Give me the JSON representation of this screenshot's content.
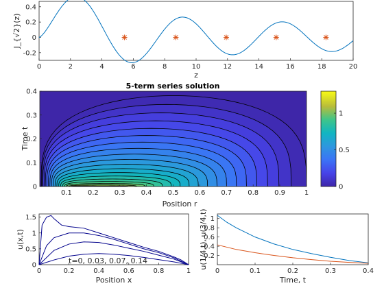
{
  "chart_data": [
    {
      "type": "line",
      "xlabel": "z",
      "ylabel": "J_{√2}(z)",
      "xlim": [
        0,
        20
      ],
      "ylim": [
        -0.3,
        0.47
      ],
      "xticks": [
        0,
        2,
        4,
        6,
        8,
        10,
        12,
        14,
        16,
        18,
        20
      ],
      "yticks": [
        -0.2,
        0,
        0.2,
        0.4
      ],
      "ytick_labels": [
        "-0.2",
        "0",
        "0.2",
        "0.4"
      ],
      "grid": false,
      "series": [
        {
          "kind": "curve",
          "function": "bessel_j",
          "order": 1.41421356,
          "x_range": [
            0,
            20
          ],
          "color": "#0072bd"
        },
        {
          "kind": "markers",
          "marker": "asterisk",
          "color": "#d95319",
          "x": [
            5.44,
            8.71,
            11.92,
            15.1,
            18.27
          ],
          "y": [
            0,
            0,
            0,
            0,
            0
          ]
        }
      ]
    },
    {
      "type": "heatmap",
      "title": "5-term series solution",
      "xlabel": "Position r",
      "ylabel": "Time t",
      "xlim": [
        0,
        1
      ],
      "ylim": [
        0,
        0.4
      ],
      "xticks": [
        0.1,
        0.2,
        0.3,
        0.4,
        0.5,
        0.6,
        0.7,
        0.8,
        0.9,
        1
      ],
      "yticks": [
        0,
        0.1,
        0.2,
        0.3,
        0.4
      ],
      "contour_levels": [
        0.03,
        0.09,
        0.15,
        0.2,
        0.26,
        0.32,
        0.38,
        0.44,
        0.5,
        0.56,
        0.62,
        0.68,
        0.74,
        0.8,
        0.86,
        0.92,
        0.98,
        1.04,
        1.1,
        1.16
      ],
      "colormap": "parula",
      "colorbar": {
        "ticks": [
          0,
          0.5,
          1
        ],
        "tick_labels": [
          "0",
          "0.5",
          "1"
        ],
        "range": [
          0,
          1.3
        ]
      }
    },
    {
      "type": "line",
      "xlabel": "Position x",
      "ylabel": "u(x,t)",
      "xlim": [
        0,
        1
      ],
      "ylim": [
        0,
        1.6
      ],
      "xticks": [
        0,
        0.2,
        0.4,
        0.6,
        0.8,
        1
      ],
      "yticks": [
        0,
        0.5,
        1,
        1.5
      ],
      "annotation": "t=0, 0.03, 0.07, 0.14",
      "series": [
        {
          "t": 0,
          "x": [
            0,
            0.02,
            0.05,
            0.08,
            0.1,
            0.15,
            0.2,
            0.3,
            0.4,
            0.5,
            0.6,
            0.7,
            0.8,
            0.9,
            0.95,
            1
          ],
          "y": [
            0,
            1.25,
            1.5,
            1.55,
            1.45,
            1.25,
            1.2,
            1.15,
            1.0,
            0.85,
            0.7,
            0.55,
            0.42,
            0.25,
            0.15,
            0
          ]
        },
        {
          "t": 0.03,
          "x": [
            0,
            0.05,
            0.1,
            0.2,
            0.3,
            0.4,
            0.5,
            0.6,
            0.7,
            0.8,
            0.9,
            1
          ],
          "y": [
            0,
            0.6,
            0.85,
            1.0,
            1.0,
            0.92,
            0.8,
            0.65,
            0.5,
            0.38,
            0.22,
            0
          ]
        },
        {
          "t": 0.07,
          "x": [
            0,
            0.1,
            0.2,
            0.3,
            0.4,
            0.5,
            0.6,
            0.7,
            0.8,
            0.9,
            1
          ],
          "y": [
            0,
            0.45,
            0.65,
            0.72,
            0.7,
            0.62,
            0.52,
            0.42,
            0.3,
            0.18,
            0
          ]
        },
        {
          "t": 0.14,
          "x": [
            0,
            0.1,
            0.2,
            0.3,
            0.4,
            0.5,
            0.6,
            0.7,
            0.8,
            0.9,
            1
          ],
          "y": [
            0,
            0.15,
            0.27,
            0.33,
            0.35,
            0.33,
            0.29,
            0.23,
            0.16,
            0.09,
            0
          ]
        }
      ]
    },
    {
      "type": "line",
      "xlabel": "Time, t",
      "ylabel": "u(1/4,t), u(3/4,t)",
      "xlim": [
        0,
        0.4
      ],
      "ylim": [
        0,
        1.1
      ],
      "xticks": [
        0,
        0.1,
        0.2,
        0.3,
        0.4
      ],
      "yticks": [
        0.2,
        0.4,
        0.6,
        0.8,
        1
      ],
      "series": [
        {
          "x": [
            0,
            0.025,
            0.05,
            0.1,
            0.15,
            0.2,
            0.25,
            0.3,
            0.35,
            0.4
          ],
          "y": [
            1.07,
            0.92,
            0.8,
            0.6,
            0.45,
            0.33,
            0.24,
            0.16,
            0.09,
            0.04
          ],
          "color": "#0072bd"
        },
        {
          "x": [
            0,
            0.025,
            0.05,
            0.1,
            0.15,
            0.2,
            0.25,
            0.3,
            0.35,
            0.4
          ],
          "y": [
            0.43,
            0.38,
            0.33,
            0.26,
            0.2,
            0.15,
            0.11,
            0.075,
            0.05,
            0.03
          ],
          "color": "#d95319"
        }
      ]
    }
  ]
}
